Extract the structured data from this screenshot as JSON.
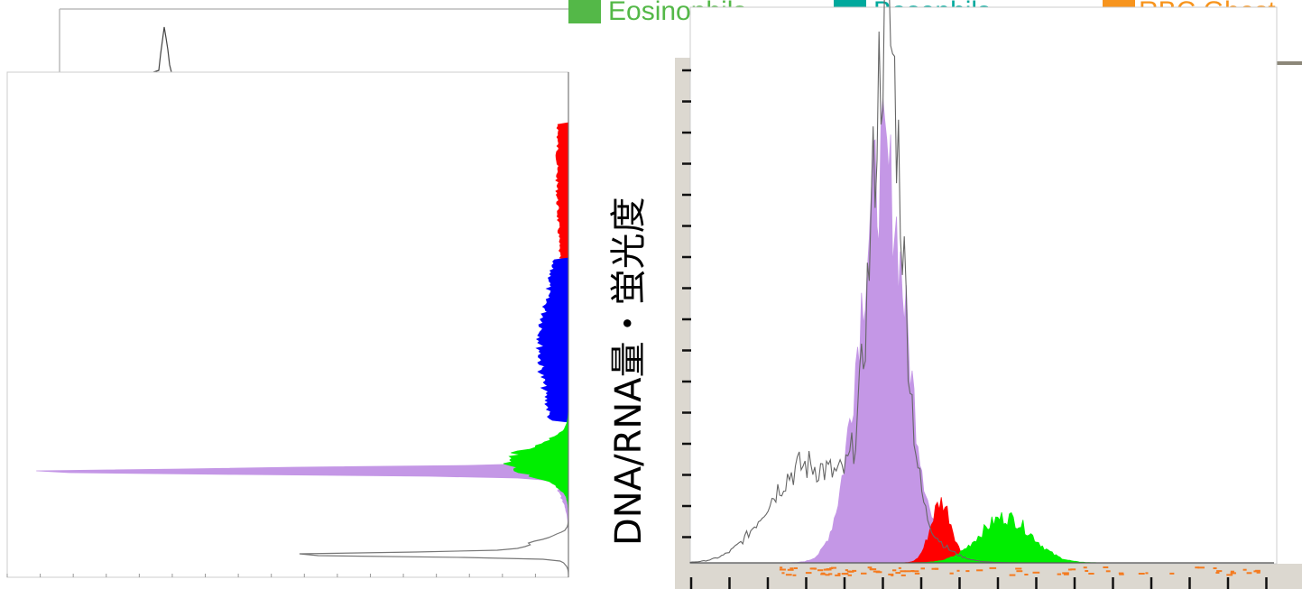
{
  "legend": {
    "items": [
      {
        "label": "Eosinophils",
        "color": "#54b848"
      },
      {
        "label": "Basophils",
        "color": "#00a99d"
      },
      {
        "label": "RBC Ghost",
        "color": "#f7941d"
      }
    ]
  },
  "chart_data": [
    {
      "type": "area",
      "orientation": "horizontal",
      "title": "",
      "xlabel": "",
      "ylabel": "",
      "grid": false,
      "legend": "none",
      "series": [
        {
          "name": "",
          "color": "#c497e6",
          "peak": 0.95
        },
        {
          "name": "",
          "color": "#ff0000",
          "peak": 0.02
        },
        {
          "name": "",
          "color": "#0000ff",
          "peak": 0.05
        },
        {
          "name": "",
          "color": "#00ee00",
          "peak": 0.11
        },
        {
          "name": "",
          "color": "#ffffff",
          "peak": 0.45
        }
      ]
    },
    {
      "type": "area",
      "orientation": "vertical",
      "title": "",
      "xlabel": "",
      "ylabel": "DNA/RNA量・蛍光度",
      "grid": false,
      "legend": "top",
      "series": [
        {
          "name": "",
          "color": "#c497e6",
          "peak": 0.78
        },
        {
          "name": "",
          "color": "#ff0000",
          "peak": 0.12
        },
        {
          "name": "",
          "color": "#00ee00",
          "peak": 0.09
        },
        {
          "name": "",
          "color": "#ffffff",
          "peak": 0.9
        }
      ]
    }
  ]
}
